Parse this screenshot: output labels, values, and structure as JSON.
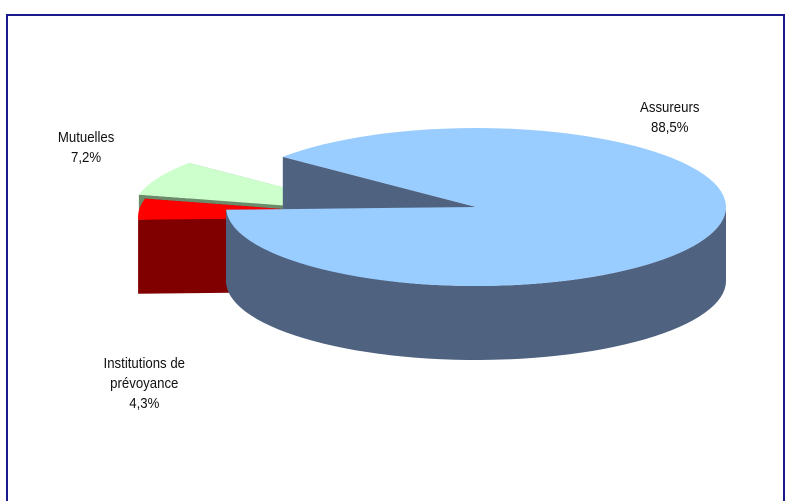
{
  "chart_data": {
    "type": "pie",
    "style": "3d-exploded",
    "title": "",
    "slices": [
      {
        "label": "Assureurs",
        "value": 88.5,
        "display": "88,5%",
        "color": "#99ccff",
        "side_color": "#4f6381"
      },
      {
        "label": "Institutions de prévoyance",
        "label_lines": [
          "Institutions de",
          "prévoyance"
        ],
        "value": 4.3,
        "display": "4,3%",
        "color": "#ff0000",
        "side_color": "#800000"
      },
      {
        "label": "Mutuelles",
        "value": 7.2,
        "display": "7,2%",
        "color": "#ccffcc",
        "side_color": "#6b8b6b"
      }
    ],
    "legend": "none"
  }
}
